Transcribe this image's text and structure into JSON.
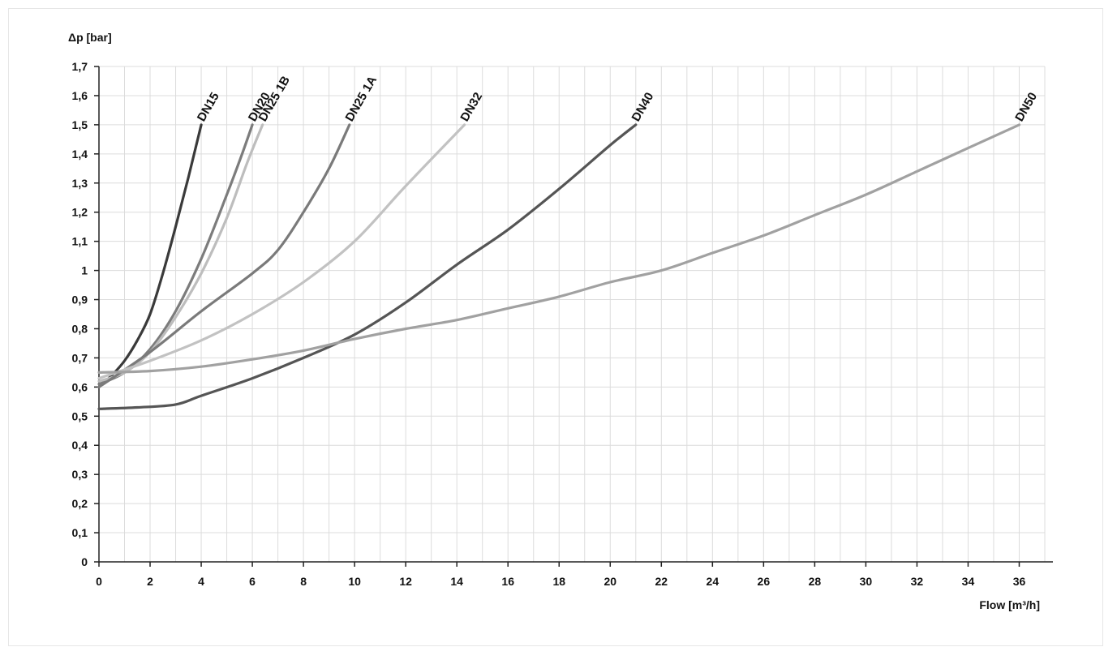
{
  "chart_data": {
    "type": "line",
    "ylabel": "Δp [bar]",
    "xlabel": "Flow [m³/h]",
    "xlim": [
      0,
      37
    ],
    "ylim": [
      0,
      1.7
    ],
    "grid": true,
    "xticks": [
      "0",
      "2",
      "4",
      "6",
      "8",
      "10",
      "12",
      "14",
      "16",
      "18",
      "20",
      "22",
      "24",
      "26",
      "28",
      "30",
      "32",
      "34",
      "36"
    ],
    "yticks": [
      "0",
      "0,1",
      "0,2",
      "0,3",
      "0,4",
      "0,5",
      "0,6",
      "0,7",
      "0,8",
      "0,9",
      "1",
      "1,1",
      "1,2",
      "1,3",
      "1,4",
      "1,5",
      "1,6",
      "1,7"
    ],
    "series": [
      {
        "name": "DN15",
        "color": "#3a3a3a",
        "points": [
          [
            0,
            0.6
          ],
          [
            0.5,
            0.64
          ],
          [
            1,
            0.69
          ],
          [
            1.5,
            0.76
          ],
          [
            2,
            0.85
          ],
          [
            2.5,
            0.99
          ],
          [
            3,
            1.15
          ],
          [
            3.5,
            1.32
          ],
          [
            4,
            1.5
          ]
        ]
      },
      {
        "name": "DN20",
        "color": "#7c7c7c",
        "points": [
          [
            0,
            0.61
          ],
          [
            1,
            0.65
          ],
          [
            2,
            0.73
          ],
          [
            3,
            0.86
          ],
          [
            4,
            1.04
          ],
          [
            5,
            1.26
          ],
          [
            5.6,
            1.4
          ],
          [
            6,
            1.5
          ]
        ]
      },
      {
        "name": "DN25 1B",
        "color": "#bdbdbd",
        "points": [
          [
            0,
            0.62
          ],
          [
            1,
            0.65
          ],
          [
            2,
            0.72
          ],
          [
            3,
            0.84
          ],
          [
            4,
            0.99
          ],
          [
            5,
            1.18
          ],
          [
            5.8,
            1.37
          ],
          [
            6.4,
            1.5
          ]
        ]
      },
      {
        "name": "DN25 1A",
        "color": "#7a7a7a",
        "points": [
          [
            0,
            0.6
          ],
          [
            2,
            0.72
          ],
          [
            4,
            0.86
          ],
          [
            6,
            0.99
          ],
          [
            7,
            1.07
          ],
          [
            8,
            1.2
          ],
          [
            9,
            1.35
          ],
          [
            9.8,
            1.5
          ]
        ]
      },
      {
        "name": "DN32",
        "color": "#c2c2c2",
        "points": [
          [
            0,
            0.63
          ],
          [
            2,
            0.69
          ],
          [
            4,
            0.76
          ],
          [
            6,
            0.85
          ],
          [
            8,
            0.96
          ],
          [
            10,
            1.1
          ],
          [
            12,
            1.29
          ],
          [
            14.3,
            1.5
          ]
        ]
      },
      {
        "name": "DN40",
        "color": "#555555",
        "points": [
          [
            0,
            0.525
          ],
          [
            1.5,
            0.53
          ],
          [
            3,
            0.54
          ],
          [
            4,
            0.57
          ],
          [
            6,
            0.63
          ],
          [
            8,
            0.7
          ],
          [
            10,
            0.78
          ],
          [
            12,
            0.89
          ],
          [
            14,
            1.02
          ],
          [
            16,
            1.14
          ],
          [
            18,
            1.28
          ],
          [
            20,
            1.43
          ],
          [
            21,
            1.5
          ]
        ]
      },
      {
        "name": "DN50",
        "color": "#a1a1a1",
        "points": [
          [
            0,
            0.65
          ],
          [
            2,
            0.655
          ],
          [
            4,
            0.67
          ],
          [
            6,
            0.695
          ],
          [
            8,
            0.725
          ],
          [
            10,
            0.765
          ],
          [
            12,
            0.8
          ],
          [
            14,
            0.83
          ],
          [
            16,
            0.87
          ],
          [
            18,
            0.91
          ],
          [
            20,
            0.96
          ],
          [
            22,
            1.0
          ],
          [
            24,
            1.06
          ],
          [
            26,
            1.12
          ],
          [
            28,
            1.19
          ],
          [
            30,
            1.26
          ],
          [
            32,
            1.34
          ],
          [
            34,
            1.42
          ],
          [
            36,
            1.5
          ]
        ]
      }
    ]
  }
}
